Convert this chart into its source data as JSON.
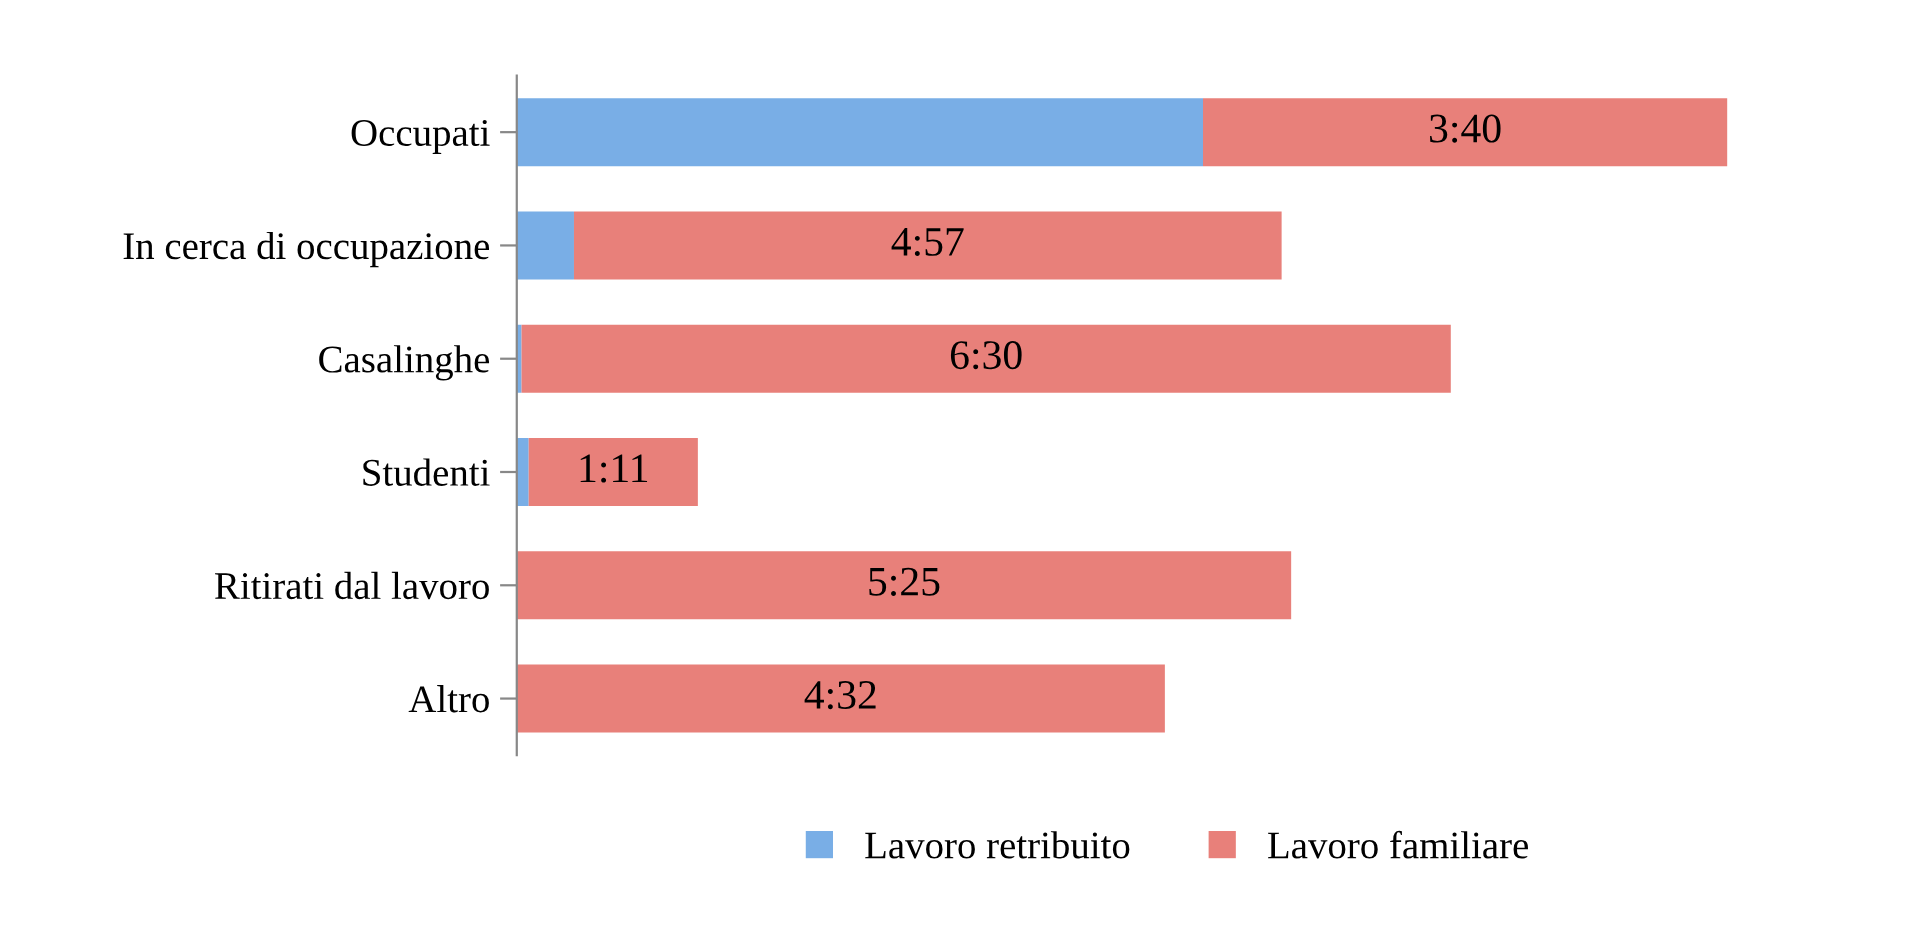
{
  "chart_data": {
    "type": "bar",
    "orientation": "horizontal",
    "stacked": true,
    "categories": [
      "Occupati",
      "In cerca di occupazione",
      "Casalinghe",
      "Studenti",
      "Ritirati dal lavoro",
      "Altro"
    ],
    "series": [
      {
        "name": "Lavoro retribuito",
        "color": "#79aee6",
        "values": [
          288,
          24,
          2,
          5,
          0,
          0
        ]
      },
      {
        "name": "Lavoro familiare",
        "color": "#e8807a",
        "values": [
          220,
          297,
          390,
          71,
          325,
          272
        ],
        "value_labels": [
          "3:40",
          "4:57",
          "6:30",
          "1:11",
          "5:25",
          "4:32"
        ]
      }
    ],
    "legend": "bottom",
    "grid": false,
    "tick_labels": "y"
  }
}
